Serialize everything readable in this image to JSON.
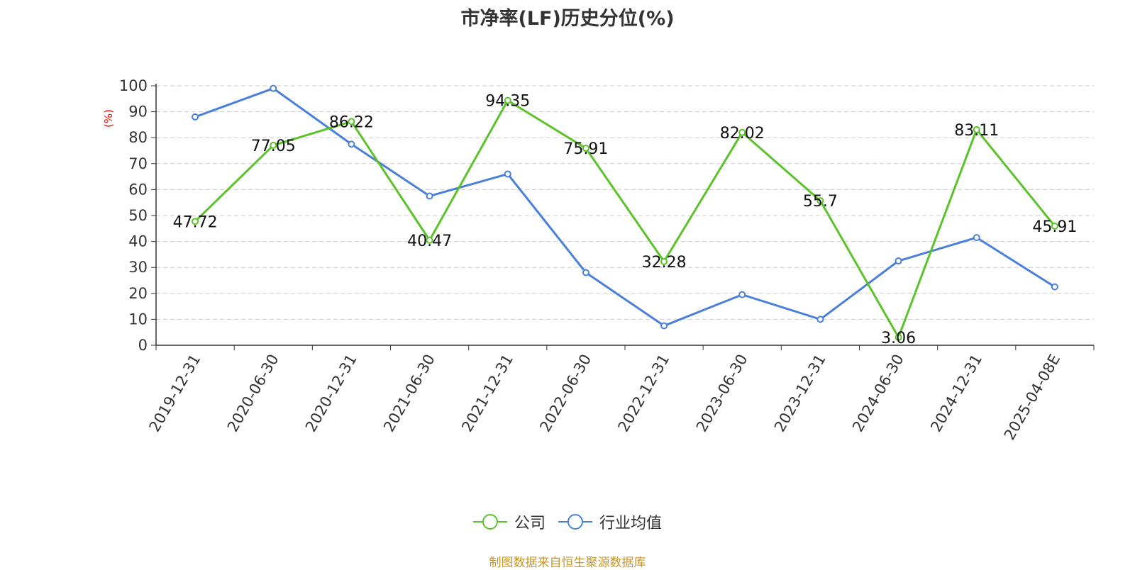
{
  "chart_data": {
    "type": "line",
    "title": "市净率(LF)历史分位(%)",
    "ylabel": "(%)",
    "ylim": [
      0,
      100
    ],
    "yticks": [
      "0",
      "10",
      "20",
      "30",
      "40",
      "50",
      "60",
      "70",
      "80",
      "90",
      "100"
    ],
    "categories": [
      "2019-12-31",
      "2020-06-30",
      "2020-12-31",
      "2021-06-30",
      "2021-12-31",
      "2022-06-30",
      "2022-12-31",
      "2023-06-30",
      "2023-12-31",
      "2024-06-30",
      "2024-12-31",
      "2025-04-08E"
    ],
    "series": [
      {
        "name": "公司",
        "color": "#5cc22a",
        "values": [
          47.72,
          77.05,
          86.22,
          40.47,
          94.35,
          75.91,
          32.28,
          82.02,
          55.7,
          3.06,
          83.11,
          45.91
        ],
        "labels": [
          "47.72",
          "77.05",
          "86.22",
          "40.47",
          "94.35",
          "75.91",
          "32.28",
          "82.02",
          "55.7",
          "3.06",
          "83.11",
          "45.91"
        ]
      },
      {
        "name": "行业均值",
        "color": "#4a80d9",
        "values": [
          88,
          99,
          77.5,
          57.5,
          66,
          28,
          7.5,
          19.5,
          10,
          32.5,
          41.5,
          22.5
        ]
      }
    ],
    "grid": true,
    "legend_position": "bottom"
  },
  "source": "制图数据来自恒生聚源数据库"
}
